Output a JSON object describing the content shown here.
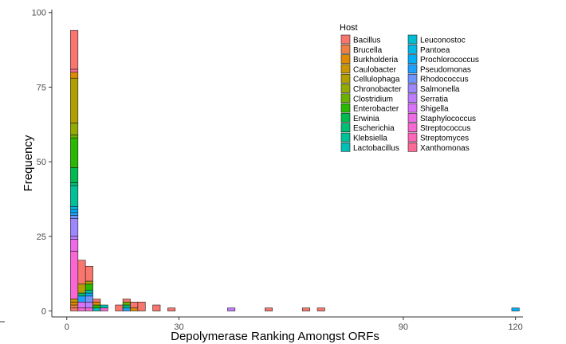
{
  "chart_data": {
    "type": "bar",
    "stacked": true,
    "xlabel": "Depolymerase Ranking Amongst ORFs",
    "ylabel": "Frequency",
    "xlim": [
      -4,
      122
    ],
    "ylim": [
      -2,
      101
    ],
    "xticks": [
      0,
      30,
      90,
      120
    ],
    "yticks": [
      0,
      25,
      50,
      75,
      100
    ],
    "grid": false,
    "legend": {
      "title": "Host",
      "position": "top-right",
      "columns": 2
    },
    "hosts": [
      {
        "name": "Bacillus",
        "color": "#F8766D"
      },
      {
        "name": "Brucella",
        "color": "#EE8043"
      },
      {
        "name": "Burkholderia",
        "color": "#DF8A00"
      },
      {
        "name": "Caulobacter",
        "color": "#CA9500"
      },
      {
        "name": "Cellulophaga",
        "color": "#B19F00"
      },
      {
        "name": "Chronobacter",
        "color": "#93AA00"
      },
      {
        "name": "Clostridium",
        "color": "#6BB100"
      },
      {
        "name": "Enterobacter",
        "color": "#2AB800"
      },
      {
        "name": "Erwinia",
        "color": "#00BB4E"
      },
      {
        "name": "Escherichia",
        "color": "#00BE75"
      },
      {
        "name": "Klebsiella",
        "color": "#00C097"
      },
      {
        "name": "Lactobacillus",
        "color": "#00C0B6"
      },
      {
        "name": "Leuconostoc",
        "color": "#00BDD2"
      },
      {
        "name": "Pantoea",
        "color": "#00B8E7"
      },
      {
        "name": "Prochlorococcus",
        "color": "#00AEFA"
      },
      {
        "name": "Pseudomonas",
        "color": "#1FA1FF"
      },
      {
        "name": "Rhodococcus",
        "color": "#6F93FF"
      },
      {
        "name": "Salmonella",
        "color": "#9E86FF"
      },
      {
        "name": "Serratia",
        "color": "#C07CFF"
      },
      {
        "name": "Shigella",
        "color": "#DA72FB"
      },
      {
        "name": "Staphylococcus",
        "color": "#EE6AE8"
      },
      {
        "name": "Streptococcus",
        "color": "#FA66D2"
      },
      {
        "name": "Streptomyces",
        "color": "#FF65B8"
      },
      {
        "name": "Xanthomonas",
        "color": "#FF6A98"
      }
    ],
    "bin_width": 2,
    "bins": [
      {
        "x": 2,
        "segments": [
          {
            "host": "Bacillus",
            "count": 1
          },
          {
            "host": "Brucella",
            "count": 1
          },
          {
            "host": "Burkholderia",
            "count": 1
          },
          {
            "host": "Caulobacter",
            "count": 1
          },
          {
            "host": "Streptococcus",
            "count": 16
          },
          {
            "host": "Staphylococcus",
            "count": 4
          },
          {
            "host": "Serratia",
            "count": 1
          },
          {
            "host": "Salmonella",
            "count": 6
          },
          {
            "host": "Rhodococcus",
            "count": 1
          },
          {
            "host": "Pseudomonas",
            "count": 1
          },
          {
            "host": "Prochlorococcus",
            "count": 1
          },
          {
            "host": "Pantoea",
            "count": 1
          },
          {
            "host": "Klebsiella",
            "count": 7
          },
          {
            "host": "Escherichia",
            "count": 1
          },
          {
            "host": "Erwinia",
            "count": 5
          },
          {
            "host": "Enterobacter",
            "count": 10
          },
          {
            "host": "Clostridium",
            "count": 1
          },
          {
            "host": "Chronobacter",
            "count": 4
          },
          {
            "host": "Cellulophaga",
            "count": 15
          },
          {
            "host": "Burkholderia",
            "count": 2
          },
          {
            "host": "Xanthomonas",
            "count": 1
          },
          {
            "host": "Bacillus",
            "count": 13
          }
        ]
      },
      {
        "x": 4,
        "segments": [
          {
            "host": "Streptococcus",
            "count": 1
          },
          {
            "host": "Shigella",
            "count": 2
          },
          {
            "host": "Pseudomonas",
            "count": 2
          },
          {
            "host": "Escherichia",
            "count": 1
          },
          {
            "host": "Cellulophaga",
            "count": 3
          },
          {
            "host": "Bacillus",
            "count": 8
          }
        ]
      },
      {
        "x": 6,
        "segments": [
          {
            "host": "Streptococcus",
            "count": 1
          },
          {
            "host": "Serratia",
            "count": 2
          },
          {
            "host": "Rhodococcus",
            "count": 2
          },
          {
            "host": "Prochlorococcus",
            "count": 1
          },
          {
            "host": "Klebsiella",
            "count": 1
          },
          {
            "host": "Enterobacter",
            "count": 2
          },
          {
            "host": "Cellulophaga",
            "count": 1
          },
          {
            "host": "Bacillus",
            "count": 5
          }
        ]
      },
      {
        "x": 8,
        "segments": [
          {
            "host": "Lactobacillus",
            "count": 1
          },
          {
            "host": "Enterobacter",
            "count": 1
          },
          {
            "host": "Burkholderia",
            "count": 1
          },
          {
            "host": "Bacillus",
            "count": 1
          }
        ]
      },
      {
        "x": 10,
        "segments": [
          {
            "host": "Streptococcus",
            "count": 1
          },
          {
            "host": "Lactobacillus",
            "count": 1
          }
        ]
      },
      {
        "x": 14,
        "segments": [
          {
            "host": "Bacillus",
            "count": 2
          }
        ]
      },
      {
        "x": 16,
        "segments": [
          {
            "host": "Pseudomonas",
            "count": 1
          },
          {
            "host": "Escherichia",
            "count": 1
          },
          {
            "host": "Clostridium",
            "count": 1
          },
          {
            "host": "Bacillus",
            "count": 1
          }
        ]
      },
      {
        "x": 18,
        "segments": [
          {
            "host": "Burkholderia",
            "count": 1
          },
          {
            "host": "Bacillus",
            "count": 2
          }
        ]
      },
      {
        "x": 20,
        "segments": [
          {
            "host": "Bacillus",
            "count": 3
          }
        ]
      },
      {
        "x": 24,
        "segments": [
          {
            "host": "Bacillus",
            "count": 2
          }
        ]
      },
      {
        "x": 28,
        "segments": [
          {
            "host": "Bacillus",
            "count": 1
          }
        ]
      },
      {
        "x": 44,
        "segments": [
          {
            "host": "Serratia",
            "count": 1
          }
        ]
      },
      {
        "x": 54,
        "segments": [
          {
            "host": "Bacillus",
            "count": 1
          }
        ]
      },
      {
        "x": 64,
        "segments": [
          {
            "host": "Bacillus",
            "count": 1
          }
        ]
      },
      {
        "x": 68,
        "segments": [
          {
            "host": "Bacillus",
            "count": 1
          }
        ]
      },
      {
        "x": 120,
        "segments": [
          {
            "host": "Prochlorococcus",
            "count": 1
          }
        ]
      }
    ]
  }
}
